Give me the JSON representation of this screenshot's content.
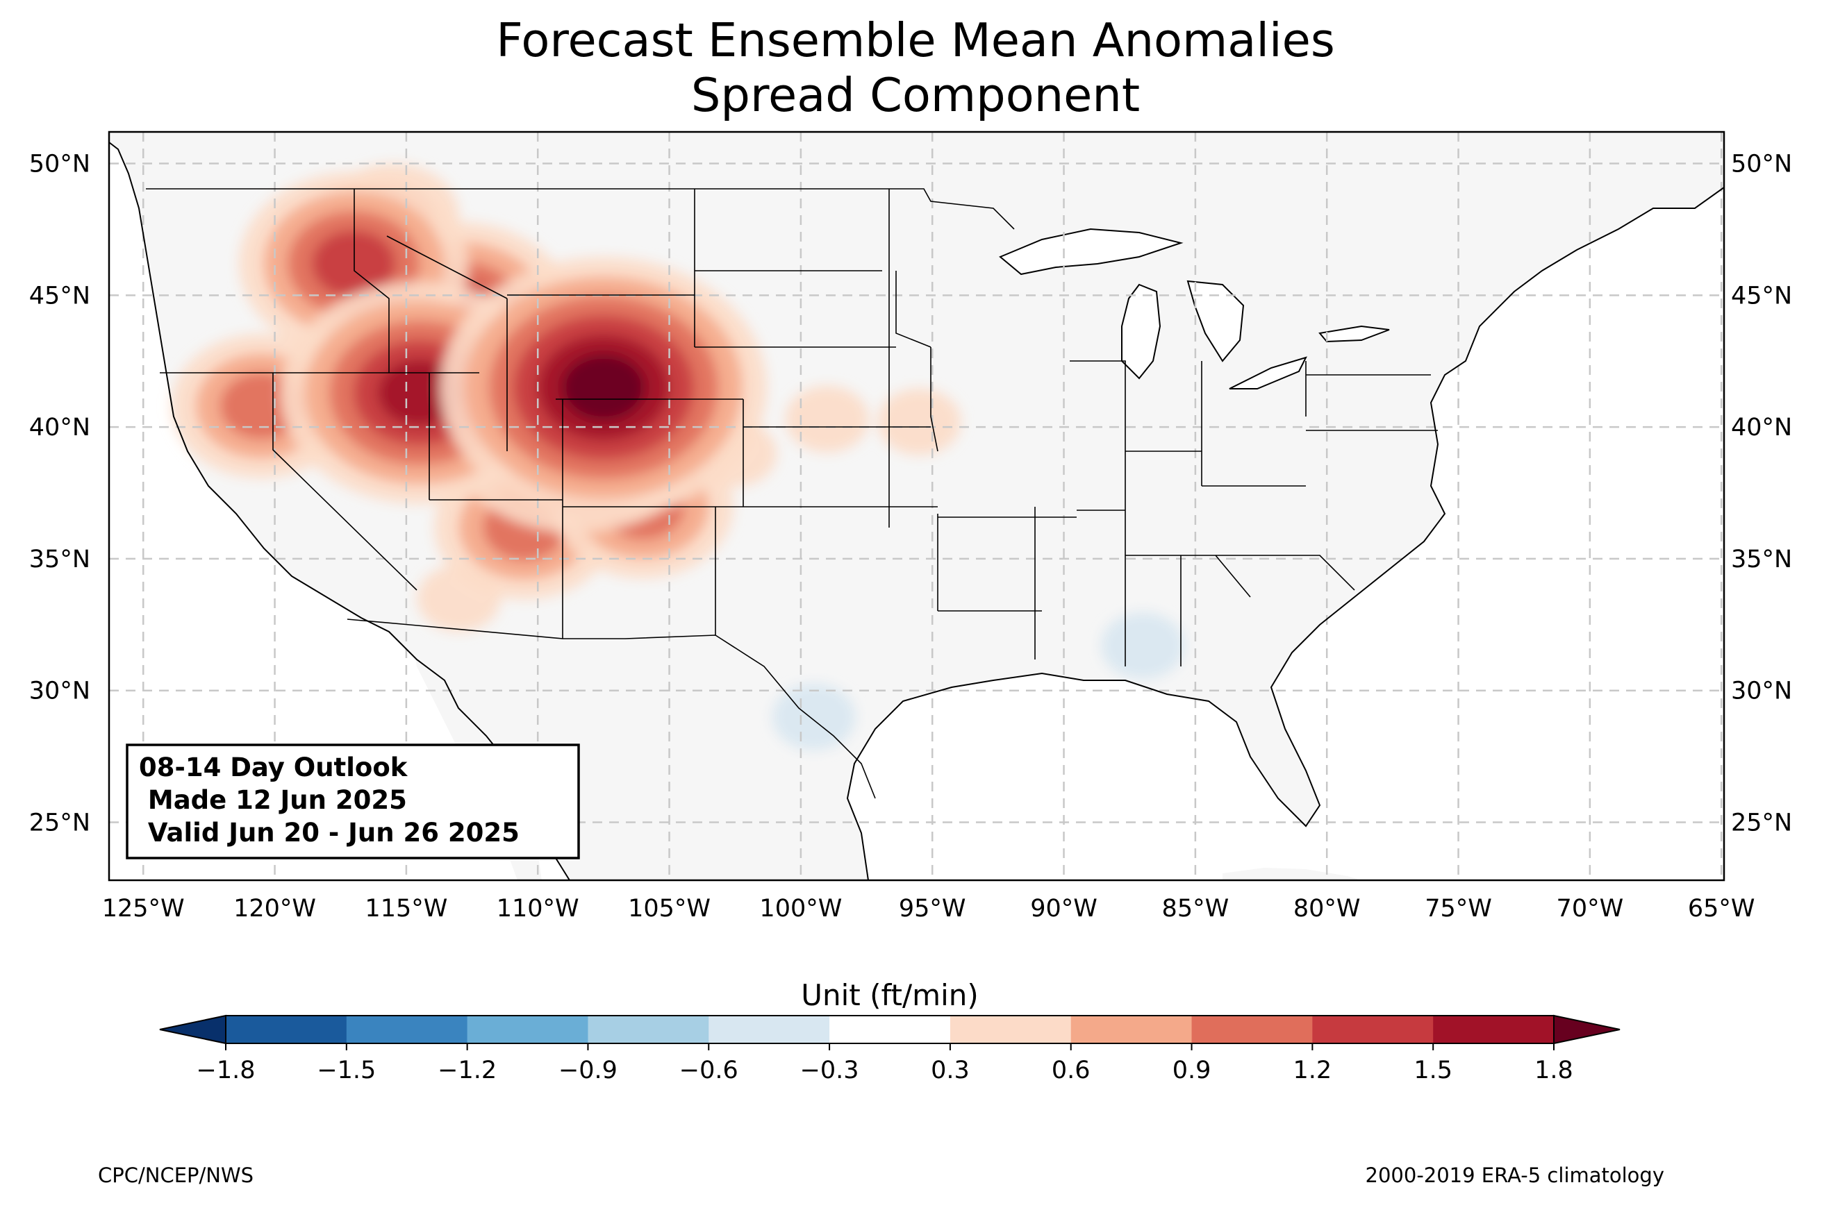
{
  "title": {
    "line1": "Forecast Ensemble Mean Anomalies",
    "line2": "Spread Component"
  },
  "map": {
    "extent": {
      "lon_min": -126.3,
      "lon_max": -64.9,
      "lat_min": 22.8,
      "lat_max": 51.2
    },
    "lon_ticks": [
      {
        "value": -125,
        "label": "125°W"
      },
      {
        "value": -120,
        "label": "120°W"
      },
      {
        "value": -115,
        "label": "115°W"
      },
      {
        "value": -110,
        "label": "110°W"
      },
      {
        "value": -105,
        "label": "105°W"
      },
      {
        "value": -100,
        "label": "100°W"
      },
      {
        "value": -95,
        "label": "95°W"
      },
      {
        "value": -90,
        "label": "90°W"
      },
      {
        "value": -85,
        "label": "85°W"
      },
      {
        "value": -80,
        "label": "80°W"
      },
      {
        "value": -75,
        "label": "75°W"
      },
      {
        "value": -70,
        "label": "70°W"
      },
      {
        "value": -65,
        "label": "65°W"
      }
    ],
    "lat_ticks": [
      {
        "value": 50,
        "label": "50°N"
      },
      {
        "value": 45,
        "label": "45°N"
      },
      {
        "value": 40,
        "label": "40°N"
      },
      {
        "value": 35,
        "label": "35°N"
      },
      {
        "value": 30,
        "label": "30°N"
      },
      {
        "value": 25,
        "label": "25°N"
      }
    ],
    "gridlines": true,
    "land_color": "#f6f6f6",
    "ocean_color": "#ffffff",
    "state_line_color": "#000000",
    "county_line_color": "#9a9a9a"
  },
  "info_box": {
    "line1": "08-14 Day Outlook",
    "line2": " Made 12 Jun 2025",
    "line3": " Valid Jun 20 - Jun 26 2025"
  },
  "colorbar": {
    "label": "Unit (ft/min)",
    "ticks": [
      "−1.8",
      "−1.5",
      "−1.2",
      "−0.9",
      "−0.6",
      "−0.3",
      "0.3",
      "0.6",
      "0.9",
      "1.2",
      "1.5",
      "1.8"
    ],
    "colors": [
      "#08306b",
      "#1a5a9c",
      "#3a84bf",
      "#6aaed6",
      "#a7cfe4",
      "#d8e7f1",
      "#ffffff",
      "#fcdbc8",
      "#f4a98a",
      "#e06e5b",
      "#c63a3f",
      "#a11228",
      "#67001f"
    ],
    "extend": "both"
  },
  "credits": {
    "left": "CPC/NCEP/NWS",
    "right": "2000-2019 ERA-5 climatology"
  },
  "chart_data": {
    "type": "heatmap",
    "variable": "Spread component of forecast ensemble mean anomaly",
    "unit": "ft/min",
    "levels": [
      -1.8,
      -1.5,
      -1.2,
      -0.9,
      -0.6,
      -0.3,
      0.3,
      0.6,
      0.9,
      1.2,
      1.5,
      1.8
    ],
    "regions": [
      {
        "region": "Western Colorado / southern Wyoming",
        "lon": -107.5,
        "lat": 41.5,
        "value": 1.8
      },
      {
        "region": "Western Colorado",
        "lon": -108.5,
        "lat": 40.2,
        "value": 1.5
      },
      {
        "region": "Northern Colorado / southern Wyoming",
        "lon": -106.5,
        "lat": 42.2,
        "value": 1.2
      },
      {
        "region": "Northern Utah / southern Idaho",
        "lon": -114.5,
        "lat": 41.3,
        "value": 1.5
      },
      {
        "region": "Central Idaho",
        "lon": -113.0,
        "lat": 44.3,
        "value": 1.2
      },
      {
        "region": "Eastern Oregon",
        "lon": -117.0,
        "lat": 46.2,
        "value": 1.2
      },
      {
        "region": "Northeastern California",
        "lon": -120.5,
        "lat": 40.8,
        "value": 0.9
      },
      {
        "region": "Northern Arizona / Four Corners",
        "lon": -110.5,
        "lat": 36.2,
        "value": 0.9
      },
      {
        "region": "Northern New Mexico",
        "lon": -106.0,
        "lat": 37.0,
        "value": 0.9
      },
      {
        "region": "Northwestern Montana",
        "lon": -115.5,
        "lat": 48.0,
        "value": 0.6
      },
      {
        "region": "Western Nebraska panhandle",
        "lon": -102.5,
        "lat": 39.0,
        "value": 0.3
      },
      {
        "region": "South-central Nebraska",
        "lon": -99.0,
        "lat": 40.3,
        "value": 0.3
      },
      {
        "region": "Southwest Arizona",
        "lon": -113.0,
        "lat": 33.5,
        "value": 0.3
      },
      {
        "region": "Northeastern Kansas",
        "lon": -95.5,
        "lat": 40.2,
        "value": 0.3
      },
      {
        "region": "South Texas",
        "lon": -99.5,
        "lat": 29.0,
        "value": -0.3
      },
      {
        "region": "Southern Alabama",
        "lon": -87.0,
        "lat": 31.7,
        "value": -0.3
      }
    ]
  }
}
